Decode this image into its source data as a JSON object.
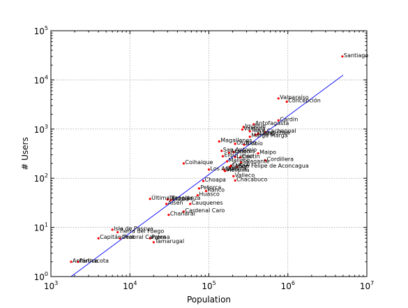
{
  "chart_data": {
    "type": "scatter",
    "title": "",
    "xlabel": "Population",
    "ylabel": "# Users",
    "xscale": "log",
    "yscale": "log",
    "xlim": [
      1000,
      10000000
    ],
    "ylim": [
      1,
      100000
    ],
    "grid": true,
    "x_ticks": [
      {
        "base": "10",
        "exp": "3",
        "value": 1000
      },
      {
        "base": "10",
        "exp": "4",
        "value": 10000
      },
      {
        "base": "10",
        "exp": "5",
        "value": 100000
      },
      {
        "base": "10",
        "exp": "6",
        "value": 1000000
      },
      {
        "base": "10",
        "exp": "7",
        "value": 10000000
      }
    ],
    "y_ticks": [
      {
        "base": "10",
        "exp": "0",
        "value": 1
      },
      {
        "base": "10",
        "exp": "1",
        "value": 10
      },
      {
        "base": "10",
        "exp": "2",
        "value": 100
      },
      {
        "base": "10",
        "exp": "3",
        "value": 1000
      },
      {
        "base": "10",
        "exp": "4",
        "value": 10000
      },
      {
        "base": "10",
        "exp": "5",
        "value": 100000
      }
    ],
    "point_color": "#ff0000",
    "line_color": "#0000ff",
    "fit_line": {
      "x": [
        1800,
        5000000
      ],
      "y": [
        1,
        12500
      ]
    },
    "points": [
      {
        "label": "Santiago",
        "x": 4900000,
        "y": 30000
      },
      {
        "label": "Valparaíso",
        "x": 760000,
        "y": 4200
      },
      {
        "label": "Concepción",
        "x": 970000,
        "y": 3600
      },
      {
        "label": "Cardin",
        "x": 760000,
        "y": 1500
      },
      {
        "label": "Antofagasta",
        "x": 370000,
        "y": 1250
      },
      {
        "label": "Iquique",
        "x": 275000,
        "y": 1100
      },
      {
        "label": "Valdivia",
        "x": 265000,
        "y": 980
      },
      {
        "label": "Talca",
        "x": 330000,
        "y": 900
      },
      {
        "label": "Cachapoal",
        "x": 520000,
        "y": 870
      },
      {
        "label": "Llanquihue",
        "x": 420000,
        "y": 800
      },
      {
        "label": "Ñuble",
        "x": 390000,
        "y": 760
      },
      {
        "label": "Marga Marga",
        "x": 330000,
        "y": 700
      },
      {
        "label": "Magallanes",
        "x": 135000,
        "y": 560
      },
      {
        "label": "Osorno",
        "x": 215000,
        "y": 500
      },
      {
        "label": "Biobío",
        "x": 280000,
        "y": 480
      },
      {
        "label": "San Antonio",
        "x": 145000,
        "y": 360
      },
      {
        "label": "Linares",
        "x": 205000,
        "y": 340
      },
      {
        "label": "Arauco",
        "x": 180000,
        "y": 330
      },
      {
        "label": "Maipo",
        "x": 420000,
        "y": 320
      },
      {
        "label": "Elqui",
        "x": 150000,
        "y": 280
      },
      {
        "label": "Limarí",
        "x": 215000,
        "y": 270
      },
      {
        "label": "Cautín",
        "x": 250000,
        "y": 265
      },
      {
        "label": "Cordillera",
        "x": 520000,
        "y": 230
      },
      {
        "label": "Coihaique",
        "x": 48000,
        "y": 200
      },
      {
        "label": "Malleco",
        "x": 170000,
        "y": 220
      },
      {
        "label": "Talagante",
        "x": 255000,
        "y": 210
      },
      {
        "label": "Curicó",
        "x": 190000,
        "y": 180
      },
      {
        "label": "Chiloé",
        "x": 185000,
        "y": 170
      },
      {
        "label": "Los Andes",
        "x": 100000,
        "y": 150
      },
      {
        "label": "Quillota",
        "x": 155000,
        "y": 150
      },
      {
        "label": "San Felipe de Aconcagua",
        "x": 230000,
        "y": 170
      },
      {
        "label": "Melipilla",
        "x": 160000,
        "y": 140
      },
      {
        "label": "Valleco",
        "x": 205000,
        "y": 110
      },
      {
        "label": "Chacabuco",
        "x": 215000,
        "y": 90
      },
      {
        "label": "Choapa",
        "x": 85000,
        "y": 88
      },
      {
        "label": "Petorca",
        "x": 75000,
        "y": 62
      },
      {
        "label": "Ranco",
        "x": 92000,
        "y": 55
      },
      {
        "label": "Huasco",
        "x": 72000,
        "y": 45
      },
      {
        "label": "Última Esperanza",
        "x": 18000,
        "y": 38
      },
      {
        "label": "Tocopilla",
        "x": 30000,
        "y": 37
      },
      {
        "label": "El Loa",
        "x": 33000,
        "y": 36
      },
      {
        "label": "Aisén",
        "x": 29000,
        "y": 30
      },
      {
        "label": "Cauquenes",
        "x": 58000,
        "y": 30
      },
      {
        "label": "Cardenal Caro",
        "x": 48000,
        "y": 21
      },
      {
        "label": "Chañaral",
        "x": 31000,
        "y": 18
      },
      {
        "label": "Isla de Pascua",
        "x": 6000,
        "y": 9
      },
      {
        "label": "Tierra del Fuego",
        "x": 7000,
        "y": 8
      },
      {
        "label": "Capitán Prat",
        "x": 4000,
        "y": 6
      },
      {
        "label": "General Carrera",
        "x": 7500,
        "y": 6
      },
      {
        "label": "Tamarugal",
        "x": 20000,
        "y": 5
      },
      {
        "label": "Palena",
        "x": 18000,
        "y": 6
      },
      {
        "label": "Antártica",
        "x": 1800,
        "y": 2
      },
      {
        "label": "Parinacota",
        "x": 2200,
        "y": 2
      }
    ]
  }
}
